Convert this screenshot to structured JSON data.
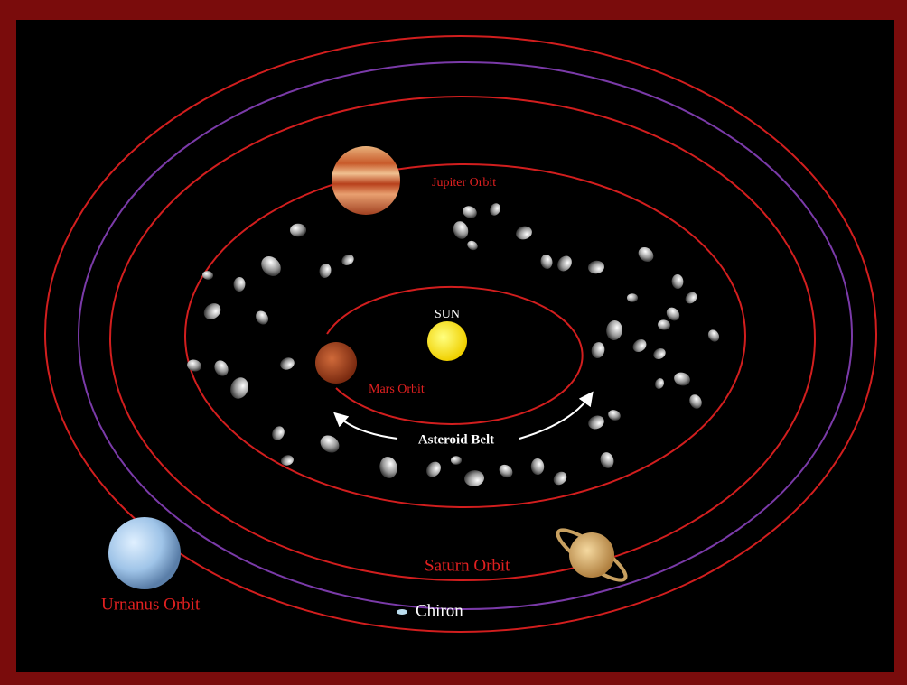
{
  "labels": {
    "sun": "SUN",
    "jupiter": "Jupiter Orbit",
    "mars": "Mars Orbit",
    "asteroids": "Asteroid Belt",
    "saturn": "Saturn Orbit",
    "uranus": "Urnanus Orbit",
    "chiron": "Chiron"
  }
}
